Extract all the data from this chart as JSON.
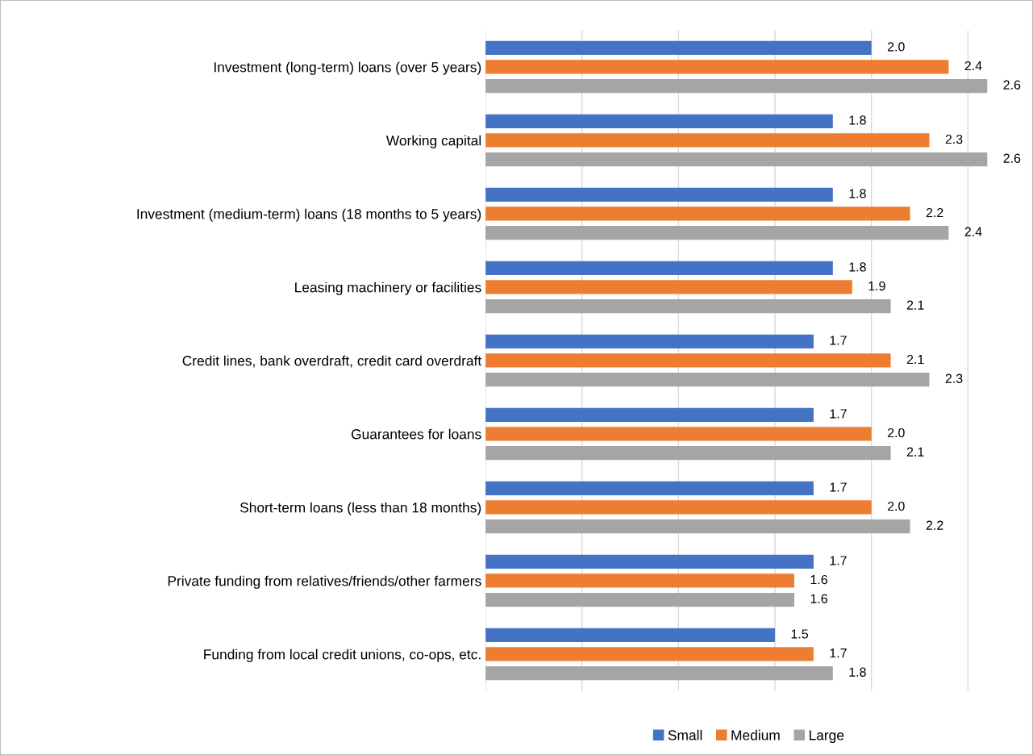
{
  "chart_data": {
    "type": "bar",
    "orientation": "horizontal",
    "categories": [
      "Investment (long-term) loans (over 5 years)",
      "Working capital",
      "Investment (medium-term) loans (18 months to 5 years)",
      "Leasing machinery or facilities",
      "Credit lines, bank overdraft, credit card overdraft",
      "Guarantees for loans",
      "Short-term loans (less than 18 months)",
      "Private funding from relatives/friends/other farmers",
      "Funding from local credit unions, co-ops, etc."
    ],
    "series": [
      {
        "name": "Small",
        "color": "#4472c4",
        "values": [
          2.0,
          1.8,
          1.8,
          1.8,
          1.7,
          1.7,
          1.7,
          1.7,
          1.5
        ],
        "value_labels": [
          "2.0",
          "1.8",
          "1.8",
          "1.8",
          "1.7",
          "1.7",
          "1.7",
          "1.7",
          "1.5"
        ]
      },
      {
        "name": "Medium",
        "color": "#ed7d31",
        "values": [
          2.4,
          2.3,
          2.2,
          1.9,
          2.1,
          2.0,
          2.0,
          1.6,
          1.7
        ],
        "value_labels": [
          "2.4",
          "2.3",
          "2.2",
          "1.9",
          "2.1",
          "2.0",
          "2.0",
          "1.6",
          "1.7"
        ]
      },
      {
        "name": "Large",
        "color": "#a5a5a5",
        "values": [
          2.6,
          2.6,
          2.4,
          2.1,
          2.3,
          2.1,
          2.2,
          1.6,
          1.8
        ],
        "value_labels": [
          "2.6",
          "2.6",
          "2.4",
          "2.1",
          "2.3",
          "2.1",
          "2.2",
          "1.6",
          "1.8"
        ]
      }
    ],
    "xticks": [
      {
        "value": 0,
        "label": null
      },
      {
        "value": 0.5,
        "label": null
      },
      {
        "value": 1,
        "label": null
      },
      {
        "value": 1.5,
        "label": null
      },
      {
        "value": 2,
        "label": null
      },
      {
        "value": 2.5,
        "label": null
      }
    ],
    "tick_labels": "y",
    "grid": "x",
    "legend": "bottom"
  }
}
